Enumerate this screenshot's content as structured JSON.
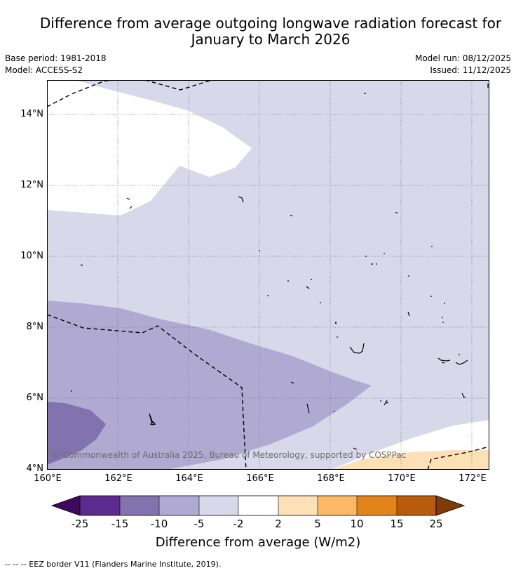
{
  "title_line1": "Difference from average outgoing longwave radiation forecast for",
  "title_line2": "January to March 2026",
  "base_period": "Base period: 1981-2018",
  "model": "Model: ACCESS-S2",
  "model_run": "Model run: 08/12/2025",
  "issued": "Issued: 11/12/2025",
  "y_axis_labels": [
    "14°N",
    "12°N",
    "10°N",
    "8°N",
    "6°N",
    "4°N"
  ],
  "x_axis_labels": [
    "160°E",
    "162°E",
    "164°E",
    "166°E",
    "168°E",
    "170°E",
    "172°E"
  ],
  "copyright": "© Commonwealth of Australia 2025, Bureau of Meteorology, supported by COSPPac",
  "colorbar": {
    "ticks": [
      "-25",
      "-15",
      "-10",
      "-5",
      "-2",
      "2",
      "5",
      "10",
      "15",
      "25"
    ],
    "title": "Difference from average (W/m2)",
    "colors": [
      "#3f0a5e",
      "#5d2a90",
      "#8272ae",
      "#b0aad2",
      "#d8d8ea",
      "#ffffff",
      "#fde0b6",
      "#fbb966",
      "#e3841a",
      "#b85c0c",
      "#7f3b08"
    ]
  },
  "eez_legend": "--  --  -- EEZ border V11 (Flanders Marine Institute, 2019)."
}
